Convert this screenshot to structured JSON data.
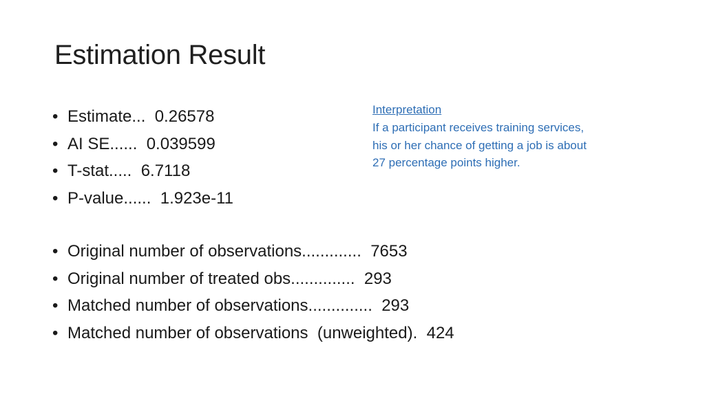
{
  "slide": {
    "title": "Estimation Result"
  },
  "stats": [
    {
      "text": "Estimate...  0.26578"
    },
    {
      "text": "AI SE......  0.039599"
    },
    {
      "text": "T-stat.....  6.7118"
    },
    {
      "text": "P-value......  1.923e-11"
    }
  ],
  "observations": [
    {
      "text": "Original number of observations.............  7653"
    },
    {
      "text": "Original number of treated obs..............  293"
    },
    {
      "text": "Matched number of observations..............  293"
    },
    {
      "text": "Matched number of observations  (unweighted).  424"
    }
  ],
  "interpretation": {
    "heading": "Interpretation",
    "lines": [
      "If a participant receives training services,",
      "his or her chance of getting a job is about",
      "27 percentage points higher."
    ]
  },
  "bullet_glyph": "•",
  "colors": {
    "text": "#1a1a1a",
    "interpretation": "#2e6eb5",
    "background": "#ffffff"
  }
}
